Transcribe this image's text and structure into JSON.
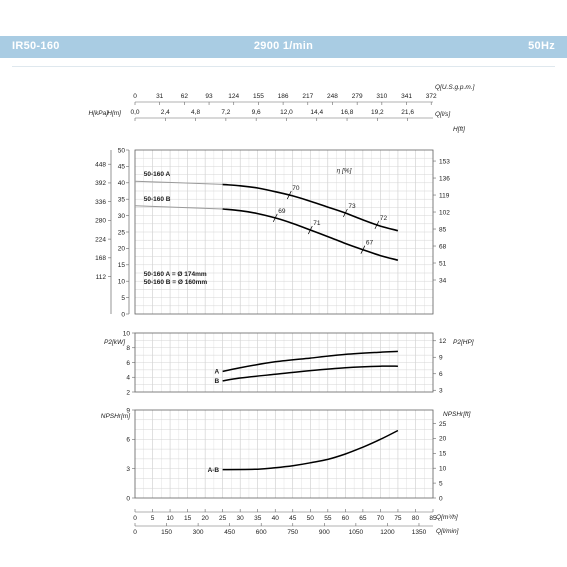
{
  "header": {
    "model": "IR50-160",
    "speed": "2900 1/min",
    "frequency": "50Hz"
  },
  "colors": {
    "header_bg": "#a9cce3",
    "grid": "#c8c8c8",
    "curve": "#000000",
    "frame": "#666666"
  },
  "chart_data": [
    {
      "type": "line",
      "id": "head",
      "x_unit": "Q[m³/h]",
      "xlim": [
        0,
        85
      ],
      "ylim": [
        0,
        50
      ],
      "axes": {
        "left_inner": {
          "unit": "H[m]",
          "ticks": [
            "0",
            "5",
            "10",
            "15",
            "20",
            "25",
            "30",
            "35",
            "40",
            "45",
            "50"
          ]
        },
        "left_outer": {
          "unit": "H[kPa]",
          "ticks": [
            "112",
            "168",
            "224",
            "280",
            "336",
            "392",
            "448"
          ]
        },
        "right": {
          "unit": "H[ft]",
          "ticks": [
            "34",
            "51",
            "68",
            "85",
            "102",
            "119",
            "136",
            "153"
          ]
        },
        "top_gpm": {
          "unit": "Q[U.S.g.p.m.]",
          "ticks": [
            "0",
            "31",
            "62",
            "93",
            "124",
            "155",
            "186",
            "217",
            "248",
            "279",
            "310",
            "341",
            "372"
          ]
        },
        "top_ls": {
          "unit": "Q[l/s]",
          "ticks": [
            "0,0",
            "2,4",
            "4,8",
            "7,2",
            "9,6",
            "12,0",
            "14,4",
            "16,8",
            "19,2",
            "21,6"
          ]
        }
      },
      "series": [
        {
          "name": "50-160 A",
          "x": [
            0,
            25,
            30,
            35,
            40,
            45,
            50,
            55,
            60,
            65,
            70,
            75
          ],
          "y": [
            40.5,
            39.5,
            39.1,
            38.4,
            37.3,
            36.0,
            34.4,
            32.6,
            30.8,
            28.7,
            26.8,
            25.4
          ]
        },
        {
          "name": "50-160 B",
          "x": [
            0,
            25,
            30,
            35,
            40,
            45,
            50,
            55,
            60,
            65,
            70,
            75
          ],
          "y": [
            33.0,
            32.0,
            31.5,
            30.6,
            29.3,
            27.6,
            25.6,
            23.6,
            21.5,
            19.6,
            17.8,
            16.4
          ]
        }
      ],
      "efficiency_marks": [
        {
          "label": "70",
          "series": "50-160 A",
          "x": 44
        },
        {
          "label": "73",
          "series": "50-160 A",
          "x": 60
        },
        {
          "label": "72",
          "series": "50-160 A",
          "x": 69
        },
        {
          "label": "69",
          "series": "50-160 B",
          "x": 40
        },
        {
          "label": "71",
          "series": "50-160 B",
          "x": 50
        },
        {
          "label": "67",
          "series": "50-160 B",
          "x": 65
        }
      ],
      "eta_label": "η [%]",
      "legend_lines": [
        "50-160 A = Ø 174mm",
        "50-160 B = Ø 160mm"
      ]
    },
    {
      "type": "line",
      "id": "power",
      "xlim": [
        0,
        85
      ],
      "ylim": [
        2,
        10
      ],
      "axes": {
        "left": {
          "unit": "P2[kW]",
          "ticks": [
            "2",
            "4",
            "6",
            "8",
            "10"
          ]
        },
        "right": {
          "unit": "P2[HP]",
          "ticks": [
            "3",
            "6",
            "9",
            "12"
          ]
        }
      },
      "series": [
        {
          "name": "A",
          "x": [
            25,
            30,
            40,
            50,
            60,
            70,
            75
          ],
          "y": [
            4.8,
            5.3,
            6.1,
            6.6,
            7.1,
            7.4,
            7.5
          ]
        },
        {
          "name": "B",
          "x": [
            25,
            30,
            40,
            50,
            60,
            70,
            75
          ],
          "y": [
            3.5,
            3.9,
            4.4,
            4.9,
            5.3,
            5.5,
            5.5
          ]
        }
      ]
    },
    {
      "type": "line",
      "id": "npsh",
      "xlim": [
        0,
        85
      ],
      "ylim": [
        0,
        9
      ],
      "axes": {
        "left": {
          "unit": "NPSHr[m]",
          "ticks": [
            "0",
            "3",
            "6",
            "9"
          ]
        },
        "right": {
          "unit": "NPSHr[ft]",
          "ticks": [
            "0",
            "5",
            "10",
            "15",
            "20",
            "25"
          ]
        },
        "bottom_m3h": {
          "unit": "Q[m³/h]",
          "ticks": [
            "0",
            "5",
            "10",
            "15",
            "20",
            "25",
            "30",
            "35",
            "40",
            "45",
            "50",
            "55",
            "60",
            "65",
            "70",
            "75",
            "80",
            "85"
          ]
        },
        "bottom_lmin": {
          "unit": "Q[l/min]",
          "ticks": [
            "0",
            "150",
            "300",
            "450",
            "600",
            "750",
            "900",
            "1050",
            "1200",
            "1350"
          ]
        }
      },
      "series": [
        {
          "name": "A-B",
          "x": [
            25,
            35,
            40,
            45,
            50,
            55,
            60,
            65,
            70,
            75
          ],
          "y": [
            2.9,
            2.95,
            3.1,
            3.3,
            3.6,
            3.95,
            4.5,
            5.2,
            6.0,
            6.9
          ]
        }
      ]
    }
  ]
}
